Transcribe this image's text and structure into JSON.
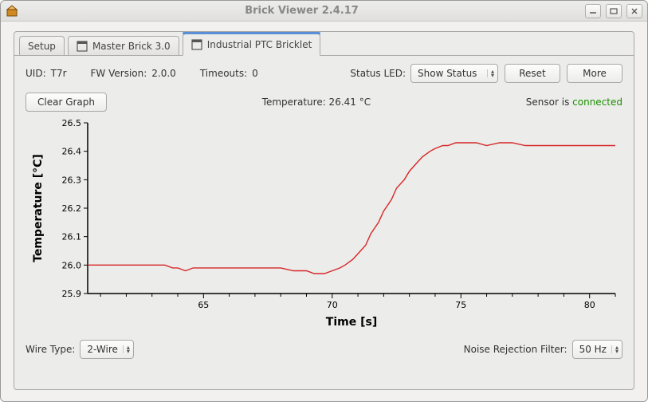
{
  "window": {
    "title": "Brick Viewer 2.4.17"
  },
  "tabs": [
    {
      "label": "Setup",
      "icon": null
    },
    {
      "label": "Master Brick 3.0",
      "icon": "brick"
    },
    {
      "label": "Industrial PTC Bricklet",
      "icon": "bricklet"
    }
  ],
  "active_tab": 2,
  "info": {
    "uid_label": "UID:",
    "uid_value": "T7r",
    "fw_label": "FW Version:",
    "fw_value": "2.0.0",
    "timeouts_label": "Timeouts:",
    "timeouts_value": "0",
    "status_led_label": "Status LED:",
    "status_led_value": "Show Status",
    "reset_label": "Reset",
    "more_label": "More"
  },
  "status": {
    "clear_label": "Clear Graph",
    "temperature_label": "Temperature: 26.41 °C",
    "sensor_prefix": "Sensor is ",
    "sensor_state": "connected"
  },
  "chart": {
    "type": "line",
    "ylabel": "Temperature [°C]",
    "xlabel": "Time [s]",
    "label_fontsize": 14,
    "tick_fontsize": 11,
    "line_color": "#d62728",
    "line_width": 1.4,
    "axis_color": "#000000",
    "tick_color": "#000000",
    "background_color": "#ececea",
    "ylim": [
      25.9,
      26.5
    ],
    "ytick_step": 0.1,
    "yticks": [
      25.9,
      26.0,
      26.1,
      26.2,
      26.3,
      26.4,
      26.5
    ],
    "xlim": [
      60.5,
      81.0
    ],
    "xticks": [
      65,
      70,
      75,
      80
    ],
    "data_x": [
      60.5,
      61.0,
      61.5,
      62.0,
      62.5,
      63.0,
      63.5,
      63.8,
      64.0,
      64.3,
      64.6,
      65.0,
      65.5,
      66.0,
      66.5,
      67.0,
      67.5,
      68.0,
      68.5,
      69.0,
      69.3,
      69.7,
      70.0,
      70.3,
      70.5,
      70.8,
      71.0,
      71.3,
      71.5,
      71.8,
      72.0,
      72.3,
      72.5,
      72.8,
      73.0,
      73.3,
      73.5,
      73.8,
      74.0,
      74.3,
      74.5,
      74.8,
      75.0,
      75.3,
      75.6,
      76.0,
      76.5,
      77.0,
      77.5,
      78.0,
      78.5,
      79.0,
      79.5,
      80.0,
      80.5,
      81.0
    ],
    "data_y": [
      26.0,
      26.0,
      26.0,
      26.0,
      26.0,
      26.0,
      26.0,
      25.99,
      25.99,
      25.98,
      25.99,
      25.99,
      25.99,
      25.99,
      25.99,
      25.99,
      25.99,
      25.99,
      25.98,
      25.98,
      25.97,
      25.97,
      25.98,
      25.99,
      26.0,
      26.02,
      26.04,
      26.07,
      26.11,
      26.15,
      26.19,
      26.23,
      26.27,
      26.3,
      26.33,
      26.36,
      26.38,
      26.4,
      26.41,
      26.42,
      26.42,
      26.43,
      26.43,
      26.43,
      26.43,
      26.42,
      26.43,
      26.43,
      26.42,
      26.42,
      26.42,
      26.42,
      26.42,
      26.42,
      26.42,
      26.42
    ]
  },
  "bottom": {
    "wire_label": "Wire Type:",
    "wire_value": "2-Wire",
    "filter_label": "Noise Rejection Filter:",
    "filter_value": "50 Hz"
  }
}
